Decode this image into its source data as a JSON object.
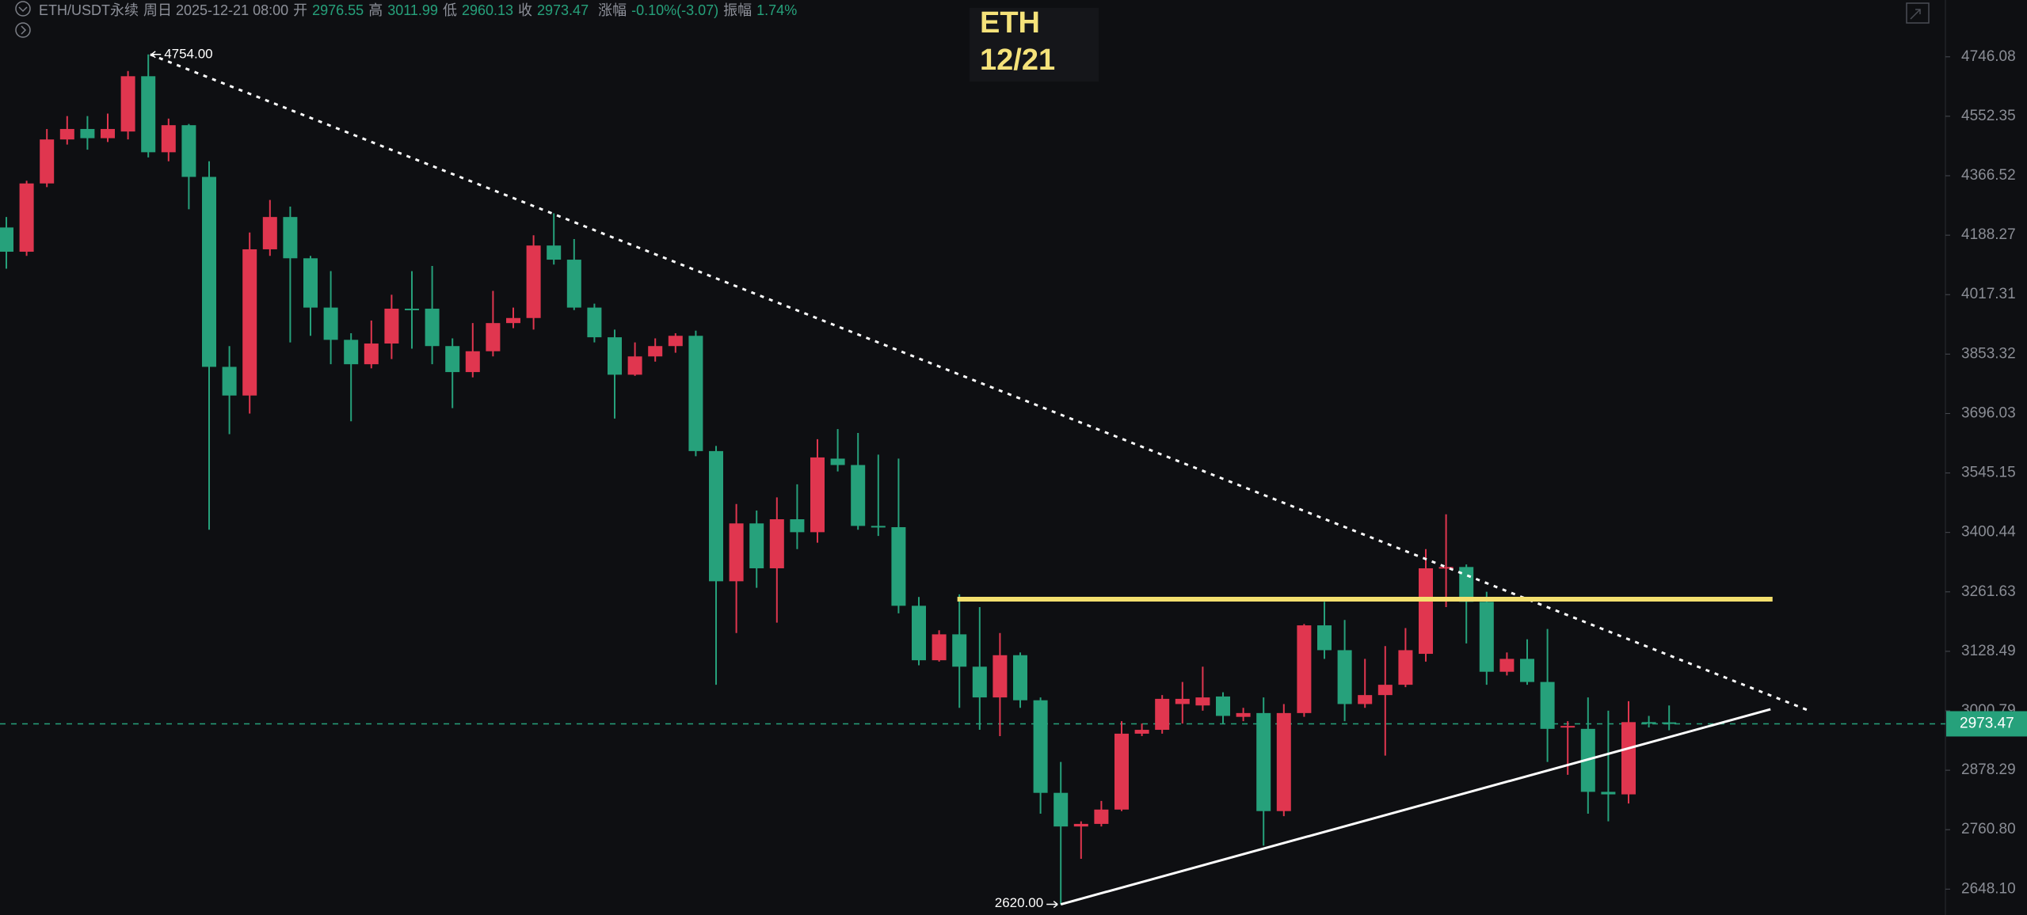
{
  "header": {
    "symbol": "ETH/USDT永续",
    "datetime": "周日 2025-12-21 08:00",
    "open_label": "开",
    "high_label": "高",
    "low_label": "低",
    "close_label": "收",
    "change_label": "涨幅",
    "change": "-0.10%(-3.07)",
    "amplitude_label": "振幅",
    "amplitude": "1.74%"
  },
  "overlay": {
    "lines": [
      "ETH",
      "12/21"
    ]
  },
  "chart_data": {
    "type": "candlestick",
    "colors": {
      "up": "#e0364f",
      "down": "#26a17b"
    },
    "open": [
      4211,
      4140,
      4343,
      4479,
      4512,
      4483,
      4504,
      4682,
      4439,
      4524,
      4363,
      3819,
      3743,
      4147,
      4242,
      4121,
      3981,
      3892,
      3826,
      3882,
      3978,
      3978,
      3875,
      3805,
      3861,
      3938,
      3952,
      4158,
      4117,
      3981,
      3899,
      3798,
      3847,
      3875,
      3903,
      3600,
      3286,
      3422,
      3316,
      3432,
      3401,
      3581,
      3565,
      3416,
      3413,
      3230,
      3109,
      3166,
      3095,
      3029,
      3120,
      3023,
      2833,
      2767,
      2772,
      2800,
      2953,
      2961,
      3015,
      3012,
      3031,
      2988,
      2996,
      2797,
      2996,
      3186,
      3131,
      3015,
      3034,
      3056,
      3123,
      3316,
      3319,
      3239,
      3084,
      3112,
      3062,
      2966,
      2963,
      2835,
      2830,
      2977,
      2976.55
    ],
    "high": [
      4242,
      4351,
      4512,
      4553,
      4553,
      4561,
      4699,
      4754,
      4545,
      4528,
      4411,
      3875,
      4196,
      4293,
      4273,
      4128,
      4084,
      3910,
      3945,
      4017,
      4084,
      4099,
      3896,
      3938,
      4028,
      3981,
      4188,
      4253,
      4177,
      3992,
      3920,
      3885,
      3896,
      3910,
      3917,
      3613,
      3469,
      3453,
      3485,
      3517,
      3630,
      3656,
      3646,
      3591,
      3581,
      3250,
      3175,
      3256,
      3227,
      3169,
      3126,
      3029,
      2895,
      2777,
      2817,
      2979,
      2974,
      3034,
      3062,
      3095,
      3040,
      3007,
      3029,
      3015,
      3189,
      3239,
      3198,
      3112,
      3140,
      3180,
      3361,
      3444,
      3325,
      3262,
      3126,
      3155,
      3178,
      2979,
      3029,
      3001,
      3021,
      2990,
      3011.99
    ],
    "low": [
      4091,
      4128,
      4332,
      4463,
      4447,
      4471,
      4479,
      4423,
      4411,
      4265,
      3407,
      3643,
      3696,
      4128,
      3885,
      3903,
      3826,
      3676,
      3815,
      3840,
      3868,
      3826,
      3710,
      3791,
      3847,
      3924,
      3920,
      4103,
      3974,
      3885,
      3683,
      3795,
      3833,
      3857,
      3587,
      3056,
      3169,
      3271,
      3192,
      3361,
      3376,
      3549,
      3407,
      3392,
      3213,
      3098,
      3106,
      3007,
      2961,
      2948,
      3007,
      2792,
      2620,
      2705,
      2767,
      2797,
      2948,
      2953,
      2974,
      3001,
      2974,
      2979,
      2730,
      2787,
      2988,
      3112,
      2979,
      3007,
      2908,
      3051,
      3106,
      3227,
      3146,
      3056,
      3076,
      3056,
      2895,
      2869,
      2792,
      2777,
      2812,
      2966,
      2960.13
    ],
    "close": [
      4140,
      4343,
      4479,
      4512,
      4483,
      4512,
      4682,
      4439,
      4524,
      4363,
      3819,
      3743,
      4147,
      4242,
      4121,
      3981,
      3892,
      3826,
      3882,
      3978,
      3974,
      3875,
      3805,
      3861,
      3938,
      3952,
      4158,
      4117,
      3981,
      3899,
      3798,
      3847,
      3875,
      3903,
      3600,
      3286,
      3422,
      3316,
      3432,
      3401,
      3584,
      3565,
      3416,
      3413,
      3230,
      3109,
      3166,
      3095,
      3029,
      3120,
      3023,
      2833,
      2767,
      2772,
      2800,
      2953,
      2961,
      3026,
      3026,
      3029,
      2990,
      2996,
      2797,
      2996,
      3186,
      3131,
      3015,
      3034,
      3056,
      3131,
      3316,
      3319,
      3239,
      3084,
      3112,
      3062,
      2963,
      2969,
      2835,
      2830,
      2977,
      2974,
      2973.47
    ],
    "ylim": [
      2600.5,
      4939
    ],
    "log_scale": true,
    "grid": false,
    "yticks": [
      4746.08,
      4552.35,
      4366.52,
      4188.27,
      4017.31,
      3853.32,
      3696.03,
      3545.15,
      3400.44,
      3261.63,
      3128.49,
      3000.79,
      2878.29,
      {
        "value": 2760.8,
        "label": "2760.80"
      },
      {
        "value": 2648.1,
        "label": "2648.10"
      }
    ],
    "annotations": [
      {
        "index": 7,
        "value": 4754,
        "label": "4754.00"
      },
      {
        "index": 52,
        "value": 2620,
        "label": "2620.00"
      }
    ],
    "trendlines": [
      {
        "color": "#ffffff",
        "style": "dotted",
        "start": {
          "index": 7.1,
          "price": 4754
        },
        "end": {
          "index": 88.9,
          "price": 3001
        }
      },
      {
        "color": "#f3df6e",
        "style": "solid",
        "start": {
          "index": 46.9,
          "price": 3245
        },
        "end": {
          "index": 87.1,
          "price": 3245
        }
      },
      {
        "color": "#ffffff",
        "style": "solid",
        "start": {
          "index": 52,
          "price": 2620
        },
        "end": {
          "index": 87.0,
          "price": 3004
        }
      }
    ],
    "last_price_line": true
  }
}
